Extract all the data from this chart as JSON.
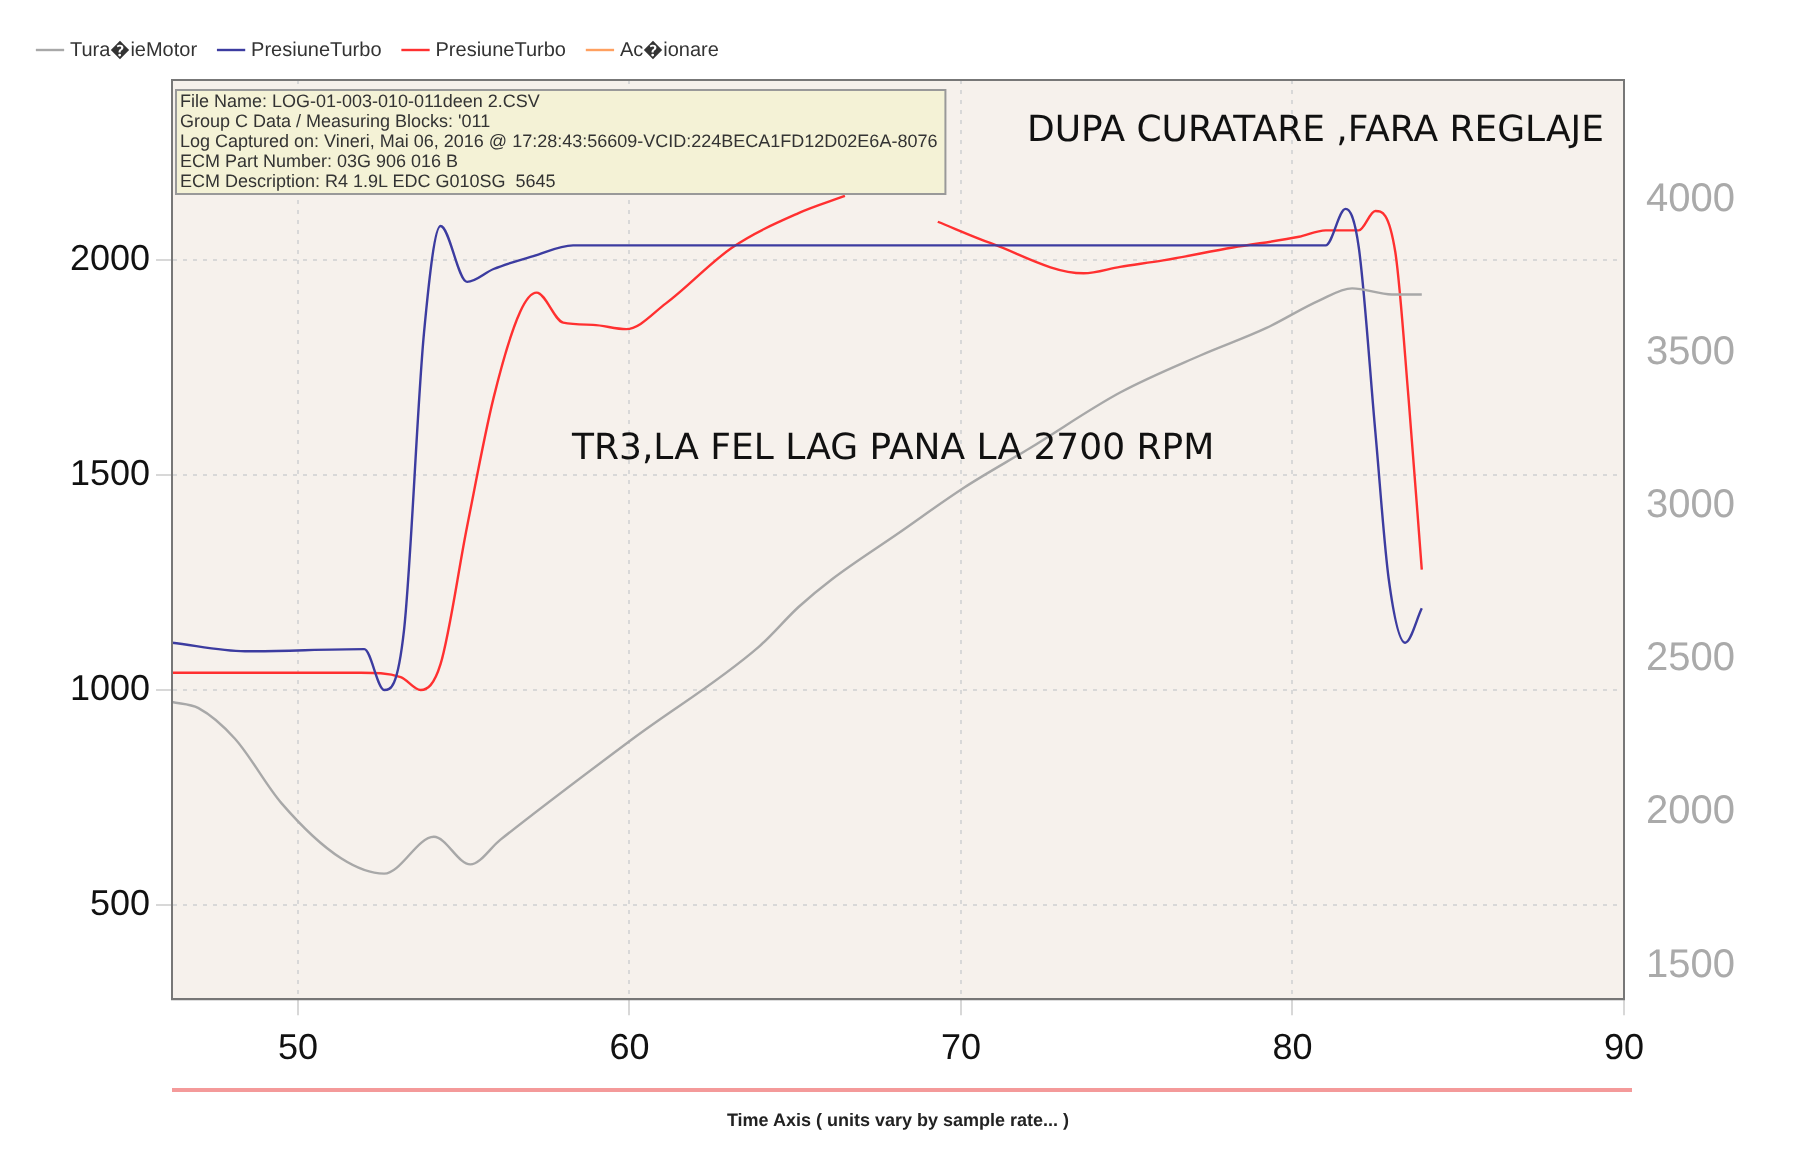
{
  "chart_data": {
    "type": "line",
    "xlabel": "Time Axis ( units vary by sample rate... )",
    "annotations": [
      "File Name: LOG-01-003-010-011deen 2.CSV",
      "Group C Data / Measuring Blocks: '011",
      "Log Captured on: Vineri, Mai 06, 2016 @ 17:28:43:56609-VCID:224BECA1FD12D02E6A-8076",
      "ECM Part Number: 03G 906 016 B",
      "ECM Description: R4 1.9L EDC G010SG  5645",
      "DUPA CURATARE ,FARA REGLAJE",
      "TR3,LA FEL LAG PANA LA 2700 RPM"
    ],
    "series": [
      {
        "name": "Tura�ieMotor",
        "color": "#a8a8a8",
        "axis": "y2",
        "x": [
          46.2,
          47.0,
          48.1,
          49.5,
          51.3,
          52.6,
          54.1,
          55.2,
          56.1,
          60.1,
          63.9,
          65.1,
          66.1,
          68.1,
          70.1,
          72.1,
          74.8,
          77.2,
          79.2,
          80.8,
          81.8,
          83.0,
          83.9
        ],
        "values": [
          2360,
          2340,
          2240,
          2030,
          1850,
          1800,
          1920,
          1830,
          1910,
          2240,
          2540,
          2670,
          2760,
          2910,
          3060,
          3190,
          3370,
          3490,
          3580,
          3670,
          3710,
          3690,
          3690
        ]
      },
      {
        "name": "PresiuneTurbo",
        "color": "#3c3ca0",
        "x": [
          46.2,
          48.4,
          52.0,
          52.6,
          53.2,
          53.8,
          54.3,
          55.1,
          55.9,
          57.1,
          58.3,
          81.0,
          81.6,
          82.0,
          82.5,
          82.9,
          83.4,
          83.9
        ],
        "values": [
          1110,
          1090,
          1095,
          1000,
          1140,
          1830,
          2080,
          1950,
          1980,
          2010,
          2035,
          2035,
          2120,
          2030,
          1600,
          1260,
          1110,
          1190
        ]
      },
      {
        "name": "PresiuneTurbo",
        "color": "#ff3030",
        "x": [
          46.2,
          51.9,
          53.1,
          53.7,
          54.3,
          55.1,
          55.9,
          56.7,
          57.2,
          58.0,
          58.9,
          59.9,
          61.1,
          63.1,
          65.1,
          66.5,
          67.8,
          69.3,
          70.9,
          73.7,
          74.8,
          76.1,
          78.2,
          80.2,
          81.0,
          82.0,
          82.5,
          83.1,
          83.5,
          83.9
        ],
        "values": [
          1040,
          1040,
          1030,
          1000,
          1060,
          1380,
          1680,
          1880,
          1925,
          1855,
          1850,
          1840,
          1900,
          2030,
          2110,
          2150,
          null,
          2090,
          2040,
          1970,
          1985,
          2000,
          2030,
          2055,
          2070,
          2070,
          2115,
          2020,
          1680,
          1280
        ]
      },
      {
        "name": "Ac�ionare",
        "color": "#ffa060"
      }
    ],
    "xlim": [
      46.2,
      90
    ],
    "xticks": [
      50,
      60,
      70,
      80,
      90
    ],
    "ylim": [
      280,
      2420
    ],
    "yticks": [
      500,
      1000,
      1500,
      2000
    ],
    "y2lim": [
      1390,
      4390
    ],
    "y2ticks": [
      1500,
      2000,
      2500,
      3000,
      3500,
      4000
    ],
    "grid": true,
    "legend": "top"
  }
}
